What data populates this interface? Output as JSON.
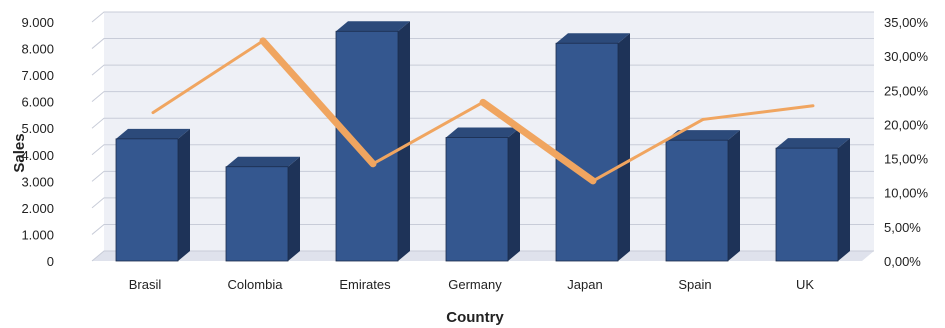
{
  "chart_data": {
    "type": "bar",
    "categories": [
      "Brasil",
      "Colombia",
      "Emirates",
      "Germany",
      "Japan",
      "Spain",
      "UK"
    ],
    "series": [
      {
        "axis": "left",
        "type": "bar",
        "values": [
          4600,
          3550,
          8650,
          4650,
          8200,
          4550,
          4250
        ]
      },
      {
        "axis": "right",
        "type": "line",
        "values": [
          21.0,
          31.5,
          13.5,
          22.5,
          11.0,
          20.0,
          22.0
        ]
      }
    ],
    "xlabel": "Country",
    "ylabel": "Sales",
    "ylim": [
      0,
      9000
    ],
    "y2lim": [
      0,
      35
    ],
    "yticks": [
      "0",
      "1.000",
      "2.000",
      "3.000",
      "4.000",
      "5.000",
      "6.000",
      "7.000",
      "8.000",
      "9.000"
    ],
    "y2ticks": [
      "0,00%",
      "5,00%",
      "10,00%",
      "15,00%",
      "20,00%",
      "25,00%",
      "30,00%",
      "35,00%"
    ],
    "grid": true,
    "colors": {
      "bar": "#34578f",
      "bar_top": "#2c4a7a",
      "bar_side": "#1e3358",
      "line": "#f0a560",
      "grid": "#c8ccd8",
      "wall": "#eef0f6"
    }
  }
}
